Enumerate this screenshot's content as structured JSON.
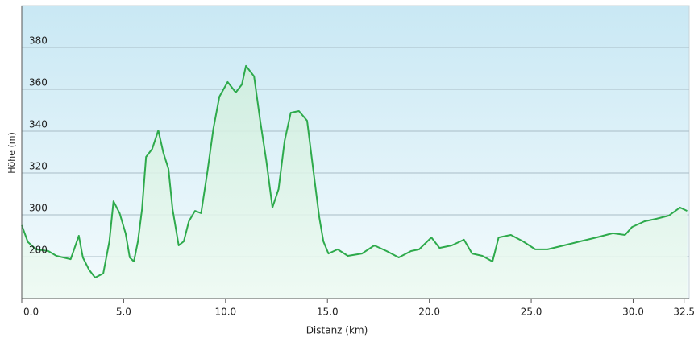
{
  "chart_data": {
    "type": "area",
    "x_label": "Distanz  (km)",
    "y_label": "Höhe (m)",
    "x": [
      0,
      0.3,
      0.7,
      1.3,
      1.7,
      2.4,
      2.8,
      3.0,
      3.3,
      3.6,
      4.0,
      4.3,
      4.5,
      4.8,
      5.1,
      5.3,
      5.5,
      5.7,
      5.9,
      6.1,
      6.4,
      6.7,
      6.95,
      7.2,
      7.4,
      7.7,
      7.95,
      8.2,
      8.5,
      8.8,
      9.1,
      9.4,
      9.7,
      10.1,
      10.5,
      10.8,
      11.0,
      11.4,
      11.7,
      12.0,
      12.3,
      12.6,
      12.9,
      13.2,
      13.6,
      14.0,
      14.3,
      14.6,
      14.8,
      15.05,
      15.5,
      16.0,
      16.7,
      17.3,
      17.9,
      18.5,
      19.1,
      19.5,
      20.1,
      20.5,
      21.1,
      21.7,
      22.1,
      22.6,
      23.1,
      23.4,
      24.0,
      24.6,
      25.2,
      25.8,
      26.6,
      27.4,
      28.2,
      29.0,
      29.6,
      29.95,
      30.55,
      31.15,
      31.75,
      32.3,
      32.65
    ],
    "series": [
      {
        "color": "#2eaa4c",
        "values": [
          295,
          287,
          283.5,
          282.7,
          280.4,
          278.8,
          290,
          279.6,
          273.8,
          270,
          272,
          287.3,
          306.5,
          300.8,
          291,
          279.6,
          277.7,
          287.3,
          302.7,
          327.7,
          331.5,
          340.4,
          329.6,
          322,
          302.7,
          285.4,
          287.3,
          296.9,
          301.9,
          300.8,
          320,
          341.2,
          356.5,
          363.5,
          358.5,
          362.3,
          371.2,
          366.2,
          345,
          325.8,
          303.5,
          312.3,
          335.4,
          348.8,
          349.6,
          345,
          321.9,
          298.8,
          287.3,
          281.5,
          283.5,
          280.4,
          281.5,
          285.4,
          282.7,
          279.6,
          282.7,
          283.5,
          289.2,
          284.2,
          285.4,
          288.1,
          281.5,
          280.4,
          277.7,
          289.2,
          290.4,
          287.3,
          283.5,
          283.5,
          285.4,
          287.3,
          289.2,
          291.2,
          290.4,
          294.2,
          296.9,
          298.1,
          299.6,
          303.5,
          301.9
        ]
      }
    ],
    "xlim": [
      0,
      32.75
    ],
    "ylim": [
      260,
      400
    ],
    "xticks": [
      {
        "value": 0,
        "label": "0.0"
      },
      {
        "value": 5,
        "label": "5.0"
      },
      {
        "value": 10,
        "label": "10.0"
      },
      {
        "value": 15,
        "label": "15.0"
      },
      {
        "value": 20,
        "label": "20.0"
      },
      {
        "value": 25,
        "label": "25.0"
      },
      {
        "value": 30,
        "label": "30.0"
      },
      32.5
    ],
    "yticks": [
      280,
      300,
      320,
      340,
      360,
      380
    ],
    "grid": true
  }
}
